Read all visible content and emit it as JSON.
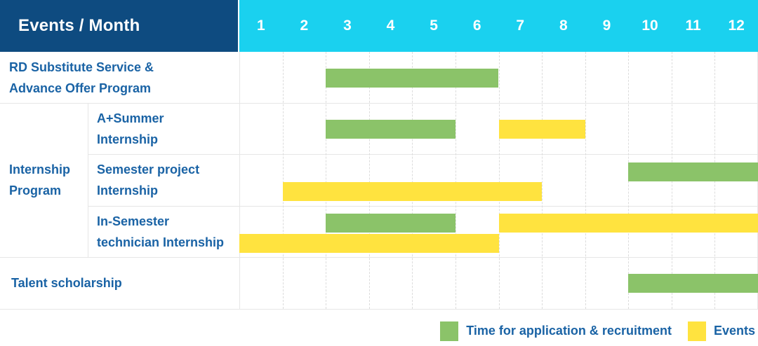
{
  "title": "Events / Month",
  "months": [
    "1",
    "2",
    "3",
    "4",
    "5",
    "6",
    "7",
    "8",
    "9",
    "10",
    "11",
    "12"
  ],
  "colors": {
    "header_bg": "#0e4b80",
    "month_header_bg": "#1ad1ef",
    "label_text": "#1a63a5",
    "application_green": "#8bc369",
    "events_yellow": "#ffe33f",
    "grid": "#e6e6e6"
  },
  "legend": [
    {
      "series": "application",
      "label": "Time for application & recruitment"
    },
    {
      "series": "events",
      "label": "Events"
    }
  ],
  "chart_data": {
    "type": "gantt",
    "unit": "month",
    "x_range": [
      1,
      12
    ],
    "group_label": "Internship\nProgram",
    "series": {
      "application": {
        "label": "Time for application & recruitment",
        "color": "#8bc369"
      },
      "events": {
        "label": "Events",
        "color": "#ffe33f"
      }
    },
    "rows": [
      {
        "label": "RD Substitute Service &\nAdvance Offer Program",
        "group": null,
        "bars": [
          {
            "series": "application",
            "start": 3,
            "end": 6,
            "line": "mid"
          }
        ]
      },
      {
        "label": "A+Summer\nInternship",
        "group": "Internship Program",
        "bars": [
          {
            "series": "application",
            "start": 3,
            "end": 5,
            "line": "mid"
          },
          {
            "series": "events",
            "start": 7,
            "end": 8,
            "line": "mid"
          }
        ]
      },
      {
        "label": "Semester project\nInternship",
        "group": "Internship Program",
        "bars": [
          {
            "series": "application",
            "start": 10,
            "end": 12,
            "line": "top"
          },
          {
            "series": "events",
            "start": 2,
            "end": 7,
            "line": "bottom"
          }
        ]
      },
      {
        "label": "In-Semester\ntechnician Internship",
        "group": "Internship Program",
        "bars": [
          {
            "series": "application",
            "start": 3,
            "end": 5,
            "line": "top"
          },
          {
            "series": "events",
            "start": 7,
            "end": 12,
            "line": "top"
          },
          {
            "series": "events",
            "start": 1,
            "end": 6,
            "line": "bottom"
          }
        ]
      },
      {
        "label": "Talent scholarship",
        "group": null,
        "bars": [
          {
            "series": "application",
            "start": 10,
            "end": 12,
            "line": "mid"
          }
        ]
      }
    ]
  }
}
